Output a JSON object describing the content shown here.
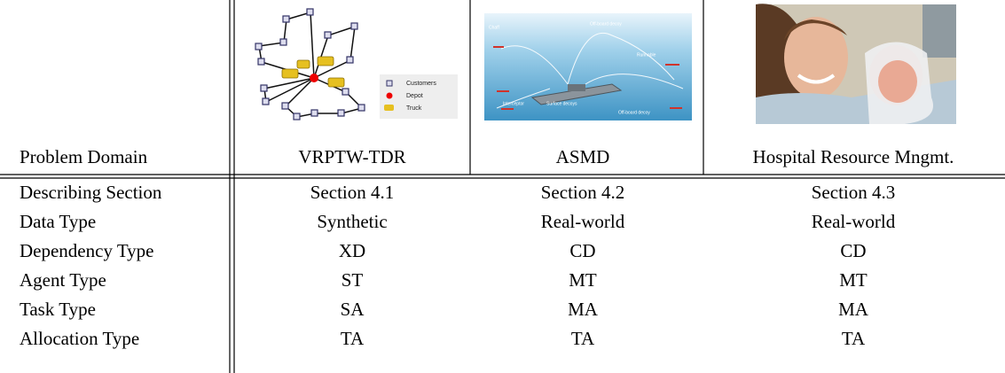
{
  "table": {
    "header": [
      "Problem Domain",
      "VRPTW-TDR",
      "ASMD",
      "Hospital Resource Mngmt."
    ],
    "rows": [
      [
        "Describing Section",
        "Section 4.1",
        "Section 4.2",
        "Section 4.3"
      ],
      [
        "Data Type",
        "Synthetic",
        "Real-world",
        "Real-world"
      ],
      [
        "Dependency Type",
        "XD",
        "CD",
        "CD"
      ],
      [
        "Agent Type",
        "ST",
        "MT",
        "MT"
      ],
      [
        "Task Type",
        "SA",
        "MA",
        "MA"
      ],
      [
        "Allocation Type",
        "TA",
        "TA",
        "TA"
      ]
    ]
  },
  "figures": {
    "vrp_legend": [
      "Customers",
      "Depot",
      "Truck"
    ],
    "asmd_labels": [
      "Chaff",
      "Off-board decoy",
      "Runnable",
      "Interceptor",
      "Surface decoys",
      "Off-board decoy"
    ]
  }
}
